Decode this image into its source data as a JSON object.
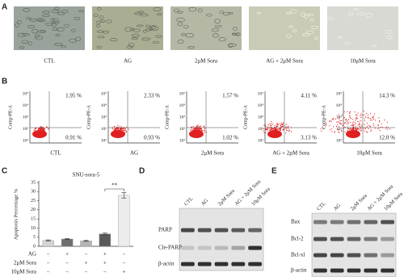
{
  "panel_letters": [
    "A",
    "B",
    "C",
    "D",
    "E"
  ],
  "panel_a": {
    "images": [
      "CTL",
      "AG",
      "2μM Sora",
      "AG + 2μM Sora",
      "10μM Sora"
    ]
  },
  "panel_b": {
    "y_label": "Comp-PE-A",
    "yticks": [
      "10⁵",
      "10⁴",
      "10³",
      "10²",
      "10¹"
    ],
    "plots": [
      {
        "label": "CTL",
        "upper_right": "1.95 %",
        "lower_right": "0.91 %"
      },
      {
        "label": "AG",
        "upper_right": "2.33 %",
        "lower_right": "0.93 %"
      },
      {
        "label": "2μM Sora",
        "upper_right": "1.57 %",
        "lower_right": "1.02 %"
      },
      {
        "label": "AG + 2μM Sora",
        "upper_right": "4.11 %",
        "lower_right": "3.13 %"
      },
      {
        "label": "10μM Sora",
        "upper_right": "14.3 %",
        "lower_right": "12.0 %"
      }
    ]
  },
  "chart_data": {
    "type": "bar",
    "title": "SNU-sora-5",
    "y_label": "Apoptosis Percentage %",
    "categories": [
      null,
      null,
      null,
      null,
      null
    ],
    "values": [
      3.2,
      4.0,
      3.0,
      6.8,
      28.0
    ],
    "errors": [
      0.3,
      0.3,
      0.3,
      0.5,
      1.5
    ],
    "colors": [
      "#d4d4d4",
      "#6e6e6e",
      "#b5b5b5",
      "#5a5a5a",
      "#ececec"
    ],
    "ylim": [
      0,
      35
    ],
    "yticks": [
      0,
      5,
      10,
      15,
      20,
      25,
      30,
      35
    ],
    "annotation": "**",
    "treatments": [
      {
        "name": "AG",
        "marks": [
          "−",
          "+",
          "−",
          "+",
          "−"
        ]
      },
      {
        "name": "2μM Sora",
        "marks": [
          "−",
          "−",
          "+",
          "+",
          "−"
        ]
      },
      {
        "name": "10μM Sora",
        "marks": [
          "−",
          "−",
          "−",
          "−",
          "+"
        ]
      }
    ]
  },
  "panel_d": {
    "columns": [
      "CTL",
      "AG",
      "2μM Sora",
      "AG + 2μM Sora",
      "10μM Sora"
    ],
    "rows": [
      "PARP",
      "Cle-PARP",
      "β-actin"
    ]
  },
  "panel_e": {
    "columns": [
      "CTL",
      "AG",
      "2μM Sora",
      "AG + 2μM Sora",
      "10μM Sora"
    ],
    "rows": [
      "Bax",
      "Bcl-2",
      "Bcl-xl",
      "β-actin"
    ]
  }
}
